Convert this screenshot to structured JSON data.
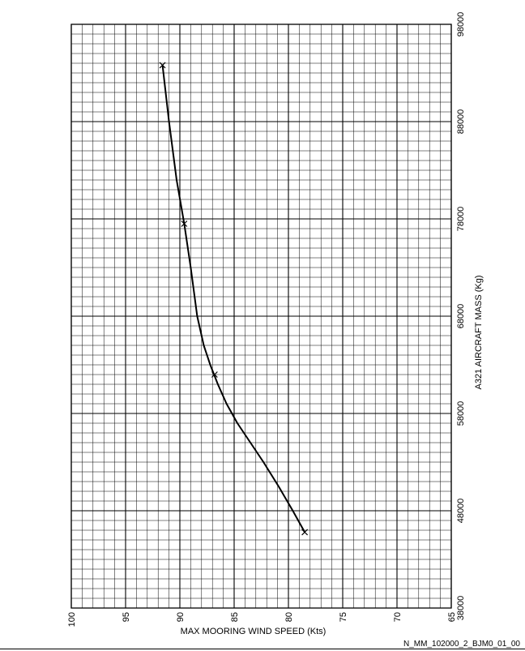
{
  "chart_data": {
    "type": "line",
    "x_label": "MAX MOORING WIND SPEED (Kts)",
    "y_label": "A321 AIRCRAFT MASS (Kg)",
    "x_range": [
      100,
      65
    ],
    "y_range": [
      38000,
      98000
    ],
    "x_ticks": [
      "100",
      "95",
      "90",
      "85",
      "80",
      "75",
      "70",
      "65"
    ],
    "y_ticks": [
      "38000",
      "48000",
      "58000",
      "68000",
      "78000",
      "88000",
      "98000"
    ],
    "grid": true,
    "series": [
      {
        "points": [
          {
            "x": 91.6,
            "y": 93800
          },
          {
            "x": 91.0,
            "y": 88000
          },
          {
            "x": 90.3,
            "y": 82000
          },
          {
            "x": 89.6,
            "y": 77500
          },
          {
            "x": 89.0,
            "y": 73000
          },
          {
            "x": 88.4,
            "y": 68000
          },
          {
            "x": 87.8,
            "y": 65000
          },
          {
            "x": 87.2,
            "y": 63000
          },
          {
            "x": 86.5,
            "y": 61000
          },
          {
            "x": 85.7,
            "y": 59000
          },
          {
            "x": 84.7,
            "y": 57000
          },
          {
            "x": 83.5,
            "y": 55000
          },
          {
            "x": 82.3,
            "y": 53000
          },
          {
            "x": 80.9,
            "y": 50500
          },
          {
            "x": 79.6,
            "y": 48000
          },
          {
            "x": 78.5,
            "y": 45800
          }
        ],
        "markers": [
          {
            "x": 91.6,
            "y": 93800
          },
          {
            "x": 89.6,
            "y": 77500
          },
          {
            "x": 86.8,
            "y": 62000
          },
          {
            "x": 78.5,
            "y": 45800
          }
        ]
      }
    ]
  },
  "figure_ref": "N_MM_102000_2_BJM0_01_00"
}
